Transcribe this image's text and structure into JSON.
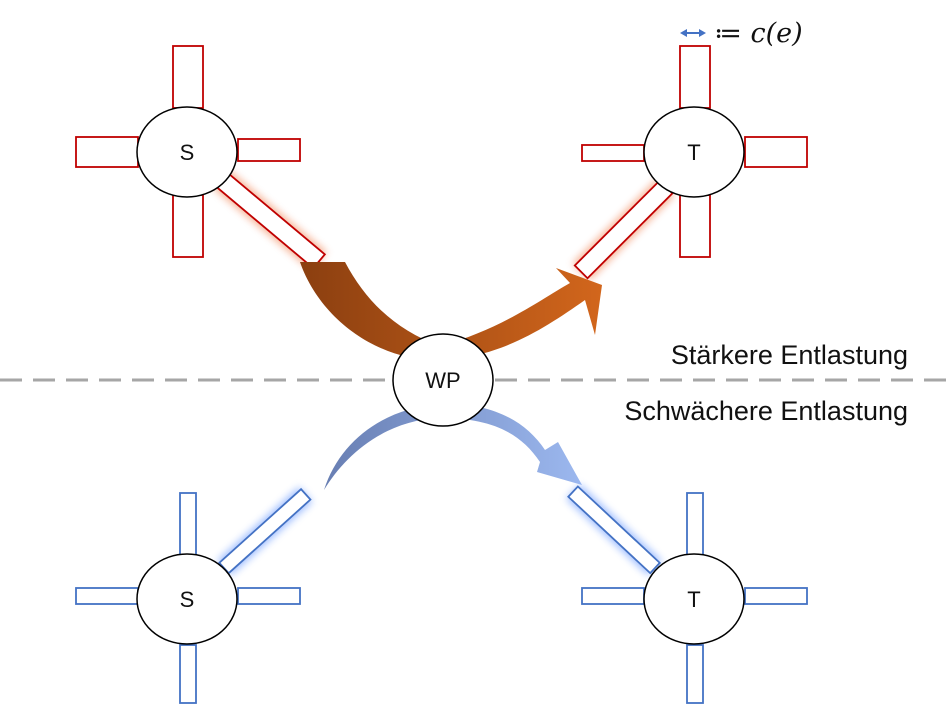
{
  "legend": {
    "arrow_icon": "double-arrow-icon",
    "definition": "≔ c(e)"
  },
  "labels": {
    "upper": "Stärkere Entlastung",
    "lower": "Schwächere Entlastung"
  },
  "nodes": {
    "top_source": "S",
    "top_target": "T",
    "center": "WP",
    "bottom_source": "S",
    "bottom_target": "T"
  },
  "colors": {
    "top_edge": "#c00000",
    "top_glow": "#f4a582",
    "bottom_edge": "#4472c4",
    "bottom_glow": "#8fb3ff",
    "top_arrow_dark": "#8b3f10",
    "top_arrow_light": "#d2661c",
    "bottom_arrow_dark": "#6379ad",
    "bottom_arrow_light": "#9cb8ef",
    "divider": "#a6a6a6"
  }
}
